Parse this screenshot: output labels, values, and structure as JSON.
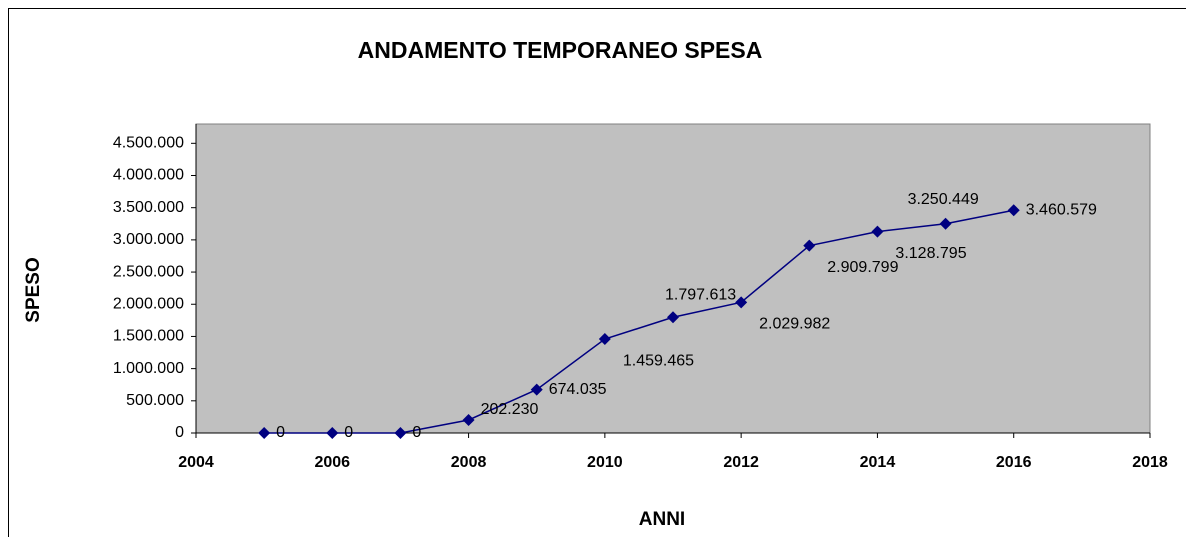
{
  "chart_data": {
    "type": "line",
    "title": "ANDAMENTO TEMPORANEO SPESA",
    "x_label": "ANNI",
    "y_label": "SPESO",
    "x": [
      2005,
      2006,
      2007,
      2008,
      2009,
      2010,
      2011,
      2012,
      2013,
      2014,
      2015,
      2016
    ],
    "values": [
      0,
      0,
      0,
      202230,
      674035,
      1459465,
      1797613,
      2029982,
      2909799,
      3128795,
      3250449,
      3460579
    ],
    "value_labels": [
      "0",
      "0",
      "0",
      "202.230",
      "674.035",
      "1.459.465",
      "1.797.613",
      "2.029.982",
      "2.909.799",
      "3.128.795",
      "3.250.449",
      "3.460.579"
    ],
    "color": "#000080",
    "xlim": [
      2004,
      2018
    ],
    "xticks": [
      2004,
      2006,
      2008,
      2010,
      2012,
      2014,
      2016,
      2018
    ],
    "ylim": [
      0,
      4800000
    ],
    "yticks": [
      0,
      {
        "value": 500000,
        "label": "500.000"
      },
      {
        "value": 1000000,
        "label": "1.000.000"
      },
      {
        "value": 1500000,
        "label": "1.500.000"
      },
      {
        "value": 2000000,
        "label": "2.000.000"
      },
      {
        "value": 2500000,
        "label": "2.500.000"
      },
      {
        "value": 3000000,
        "label": "3.000.000"
      },
      {
        "value": 3500000,
        "label": "3.500.000"
      },
      {
        "value": 4000000,
        "label": "4.000.000"
      },
      {
        "value": 4500000,
        "label": "4.500.000"
      }
    ],
    "plot_background": "#c0c0c0"
  }
}
